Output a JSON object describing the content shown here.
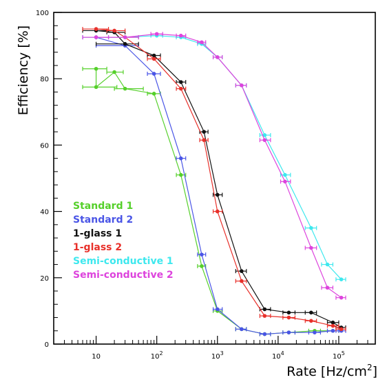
{
  "chart_data": {
    "type": "line",
    "title": "",
    "xlabel": "Rate [Hz/cm²]",
    "ylabel": "Efficiency [%]",
    "xscale": "log",
    "xlim": [
      2,
      400000
    ],
    "ylim": [
      0,
      100
    ],
    "yticks": [
      0,
      20,
      40,
      60,
      80,
      100
    ],
    "xticks": [
      {
        "value": 10,
        "base": "10",
        "exp": ""
      },
      {
        "value": 100,
        "base": "10",
        "exp": "2"
      },
      {
        "value": 1000,
        "base": "10",
        "exp": "3"
      },
      {
        "value": 10000,
        "base": "10",
        "exp": "4"
      },
      {
        "value": 100000,
        "base": "10",
        "exp": "5"
      }
    ],
    "grid": false,
    "legend_position": "lower-left",
    "series": [
      {
        "name": "Standard 1",
        "color": "#55d02a",
        "points": [
          {
            "x": 10,
            "y": 83,
            "xerr": [
              6,
              15
            ]
          },
          {
            "x": 10,
            "y": 77.5,
            "xerr": [
              6,
              22
            ]
          },
          {
            "x": 20,
            "y": 82,
            "xerr": [
              15,
              28
            ]
          },
          {
            "x": 30,
            "y": 77,
            "xerr": [
              20,
              60
            ]
          },
          {
            "x": 90,
            "y": 75.5,
            "xerr": [
              70,
              115
            ]
          },
          {
            "x": 250,
            "y": 51,
            "xerr": [
              210,
              300
            ]
          },
          {
            "x": 550,
            "y": 23.5,
            "xerr": [
              470,
              640
            ]
          },
          {
            "x": 1000,
            "y": 10,
            "xerr": [
              850,
              1200
            ]
          },
          {
            "x": 2500,
            "y": 4.5,
            "xerr": [
              2000,
              3000
            ]
          },
          {
            "x": 6000,
            "y": 3,
            "xerr": [
              5000,
              7500
            ]
          },
          {
            "x": 15000,
            "y": 3.5,
            "xerr": [
              12000,
              19000
            ]
          },
          {
            "x": 40000,
            "y": 4,
            "xerr": [
              32000,
              50000
            ]
          },
          {
            "x": 80000,
            "y": 4,
            "xerr": [
              65000,
              100000
            ]
          }
        ]
      },
      {
        "name": "Standard 2",
        "color": "#4a55e6",
        "points": [
          {
            "x": 10,
            "y": 92.5,
            "xerr": [
              6,
              16
            ]
          },
          {
            "x": 30,
            "y": 90,
            "xerr": [
              10,
              50
            ]
          },
          {
            "x": 90,
            "y": 81.5,
            "xerr": [
              70,
              115
            ]
          },
          {
            "x": 250,
            "y": 56,
            "xerr": [
              210,
              300
            ]
          },
          {
            "x": 550,
            "y": 27,
            "xerr": [
              470,
              640
            ]
          },
          {
            "x": 1000,
            "y": 10.5,
            "xerr": [
              850,
              1200
            ]
          },
          {
            "x": 2500,
            "y": 4.5,
            "xerr": [
              2000,
              3000
            ]
          },
          {
            "x": 6000,
            "y": 3,
            "xerr": [
              5000,
              7500
            ]
          },
          {
            "x": 15000,
            "y": 3.5,
            "xerr": [
              12000,
              19000
            ]
          },
          {
            "x": 40000,
            "y": 3.5,
            "xerr": [
              32000,
              50000
            ]
          },
          {
            "x": 80000,
            "y": 4,
            "xerr": [
              65000,
              100000
            ]
          },
          {
            "x": 110000,
            "y": 4,
            "xerr": [
              90000,
              130000
            ]
          }
        ]
      },
      {
        "name": "1-glass 1",
        "color": "#111111",
        "points": [
          {
            "x": 10,
            "y": 94.5,
            "xerr": [
              6,
              16
            ]
          },
          {
            "x": 20,
            "y": 94,
            "xerr": [
              15,
              30
            ]
          },
          {
            "x": 30,
            "y": 90.5,
            "xerr": [
              10,
              50
            ]
          },
          {
            "x": 90,
            "y": 87,
            "xerr": [
              70,
              115
            ]
          },
          {
            "x": 250,
            "y": 79,
            "xerr": [
              210,
              300
            ]
          },
          {
            "x": 600,
            "y": 64,
            "xerr": [
              510,
              700
            ]
          },
          {
            "x": 1000,
            "y": 45,
            "xerr": [
              850,
              1200
            ]
          },
          {
            "x": 2500,
            "y": 22,
            "xerr": [
              2000,
              3000
            ]
          },
          {
            "x": 6000,
            "y": 10.5,
            "xerr": [
              5000,
              7500
            ]
          },
          {
            "x": 15000,
            "y": 9.5,
            "xerr": [
              12000,
              19000
            ]
          },
          {
            "x": 35000,
            "y": 9.5,
            "xerr": [
              28000,
              43000
            ]
          },
          {
            "x": 80000,
            "y": 6.5,
            "xerr": [
              65000,
              100000
            ]
          },
          {
            "x": 110000,
            "y": 5,
            "xerr": [
              90000,
              130000
            ]
          }
        ]
      },
      {
        "name": "1-glass 2",
        "color": "#e8302a",
        "points": [
          {
            "x": 10,
            "y": 95,
            "xerr": [
              6,
              16
            ]
          },
          {
            "x": 20,
            "y": 94.5,
            "xerr": [
              15,
              30
            ]
          },
          {
            "x": 30,
            "y": 92.5,
            "xerr": [
              10,
              50
            ]
          },
          {
            "x": 90,
            "y": 86,
            "xerr": [
              70,
              115
            ]
          },
          {
            "x": 250,
            "y": 77,
            "xerr": [
              210,
              300
            ]
          },
          {
            "x": 600,
            "y": 61.5,
            "xerr": [
              510,
              700
            ]
          },
          {
            "x": 1000,
            "y": 40,
            "xerr": [
              850,
              1200
            ]
          },
          {
            "x": 2500,
            "y": 19,
            "xerr": [
              2000,
              3000
            ]
          },
          {
            "x": 6000,
            "y": 8.5,
            "xerr": [
              5000,
              7500
            ]
          },
          {
            "x": 15000,
            "y": 8,
            "xerr": [
              12000,
              19000
            ]
          },
          {
            "x": 35000,
            "y": 7,
            "xerr": [
              28000,
              43000
            ]
          },
          {
            "x": 80000,
            "y": 5.5,
            "xerr": [
              65000,
              100000
            ]
          },
          {
            "x": 110000,
            "y": 4.5,
            "xerr": [
              90000,
              130000
            ]
          }
        ]
      },
      {
        "name": "Semi-conductive 1",
        "color": "#3ee8ee",
        "points": [
          {
            "x": 10,
            "y": 92.5,
            "xerr": [
              6,
              16
            ]
          },
          {
            "x": 30,
            "y": 92.5,
            "xerr": [
              10,
              50
            ]
          },
          {
            "x": 100,
            "y": 93,
            "xerr": [
              80,
              125
            ]
          },
          {
            "x": 250,
            "y": 92.5,
            "xerr": [
              210,
              300
            ]
          },
          {
            "x": 550,
            "y": 90.5,
            "xerr": [
              470,
              640
            ]
          },
          {
            "x": 1000,
            "y": 86.5,
            "xerr": [
              850,
              1200
            ]
          },
          {
            "x": 2500,
            "y": 78,
            "xerr": [
              2000,
              3000
            ]
          },
          {
            "x": 6000,
            "y": 63,
            "xerr": [
              5000,
              7500
            ]
          },
          {
            "x": 13000,
            "y": 51,
            "xerr": [
              11000,
              16000
            ]
          },
          {
            "x": 35000,
            "y": 35,
            "xerr": [
              28000,
              43000
            ]
          },
          {
            "x": 65000,
            "y": 24,
            "xerr": [
              52000,
              80000
            ]
          },
          {
            "x": 110000,
            "y": 19.5,
            "xerr": [
              90000,
              130000
            ]
          }
        ]
      },
      {
        "name": "Semi-conductive 2",
        "color": "#dd44dd",
        "points": [
          {
            "x": 10,
            "y": 92.5,
            "xerr": [
              6,
              16
            ]
          },
          {
            "x": 30,
            "y": 92.5,
            "xerr": [
              10,
              50
            ]
          },
          {
            "x": 100,
            "y": 93.5,
            "xerr": [
              80,
              125
            ]
          },
          {
            "x": 250,
            "y": 93,
            "xerr": [
              210,
              300
            ]
          },
          {
            "x": 550,
            "y": 91,
            "xerr": [
              470,
              640
            ]
          },
          {
            "x": 1000,
            "y": 86.5,
            "xerr": [
              850,
              1200
            ]
          },
          {
            "x": 2500,
            "y": 78,
            "xerr": [
              2000,
              3000
            ]
          },
          {
            "x": 6000,
            "y": 61.5,
            "xerr": [
              5000,
              7500
            ]
          },
          {
            "x": 13000,
            "y": 49,
            "xerr": [
              11000,
              16000
            ]
          },
          {
            "x": 35000,
            "y": 29,
            "xerr": [
              28000,
              43000
            ]
          },
          {
            "x": 65000,
            "y": 17,
            "xerr": [
              52000,
              80000
            ]
          },
          {
            "x": 110000,
            "y": 14,
            "xerr": [
              90000,
              130000
            ]
          }
        ]
      }
    ]
  }
}
